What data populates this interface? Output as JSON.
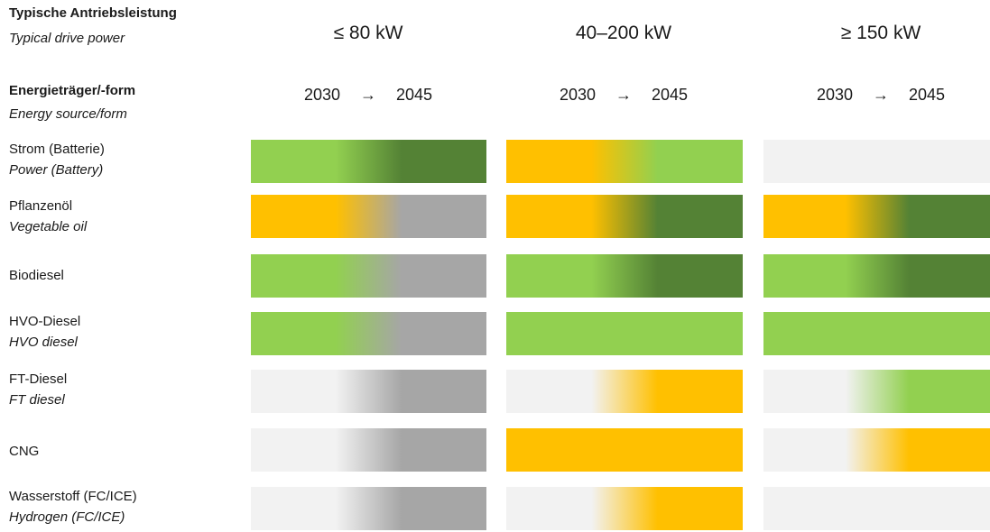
{
  "header": {
    "power_de": "Typische Antriebsleistung",
    "power_en": "Typical drive power",
    "energy_de": "Energieträger/-form",
    "energy_en": "Energy source/form"
  },
  "columns": [
    {
      "power": "≤ 80 kW",
      "year_start": "2030",
      "arrow": "→",
      "year_end": "2045"
    },
    {
      "power": "40–200 kW",
      "year_start": "2030",
      "arrow": "→",
      "year_end": "2045"
    },
    {
      "power": "≥ 150 kW",
      "year_start": "2030",
      "arrow": "→",
      "year_end": "2045"
    }
  ],
  "colors": {
    "light_green": "#92d050",
    "dark_green": "#548235",
    "orange": "#ffc000",
    "gray": "#a6a6a6",
    "light_gray": "#f2f2f2"
  },
  "rows": [
    {
      "label_de": "Strom (Batterie)",
      "label_en": "Power (Battery)",
      "cells": [
        [
          "light_green",
          "dark_green"
        ],
        [
          "orange",
          "light_green"
        ],
        [
          "light_gray",
          "light_gray"
        ]
      ]
    },
    {
      "label_de": "Pflanzenöl",
      "label_en": "Vegetable oil",
      "cells": [
        [
          "orange",
          "gray"
        ],
        [
          "orange",
          "dark_green"
        ],
        [
          "orange",
          "dark_green"
        ]
      ]
    },
    {
      "label_de": "Biodiesel",
      "label_en": "",
      "cells": [
        [
          "light_green",
          "gray"
        ],
        [
          "light_green",
          "dark_green"
        ],
        [
          "light_green",
          "dark_green"
        ]
      ]
    },
    {
      "label_de": "HVO-Diesel",
      "label_en": "HVO diesel",
      "cells": [
        [
          "light_green",
          "gray"
        ],
        [
          "light_green",
          "light_green"
        ],
        [
          "light_green",
          "light_green"
        ]
      ]
    },
    {
      "label_de": "FT-Diesel",
      "label_en": "FT diesel",
      "cells": [
        [
          "light_gray",
          "gray"
        ],
        [
          "light_gray",
          "orange"
        ],
        [
          "light_gray",
          "light_green"
        ]
      ]
    },
    {
      "label_de": "CNG",
      "label_en": "",
      "cells": [
        [
          "light_gray",
          "gray"
        ],
        [
          "orange",
          "orange"
        ],
        [
          "light_gray",
          "orange"
        ]
      ]
    },
    {
      "label_de": "Wasserstoff (FC/ICE)",
      "label_en": "Hydrogen (FC/ICE)",
      "cells": [
        [
          "light_gray",
          "gray"
        ],
        [
          "light_gray",
          "orange"
        ],
        [
          "light_gray",
          "light_gray"
        ]
      ]
    }
  ]
}
